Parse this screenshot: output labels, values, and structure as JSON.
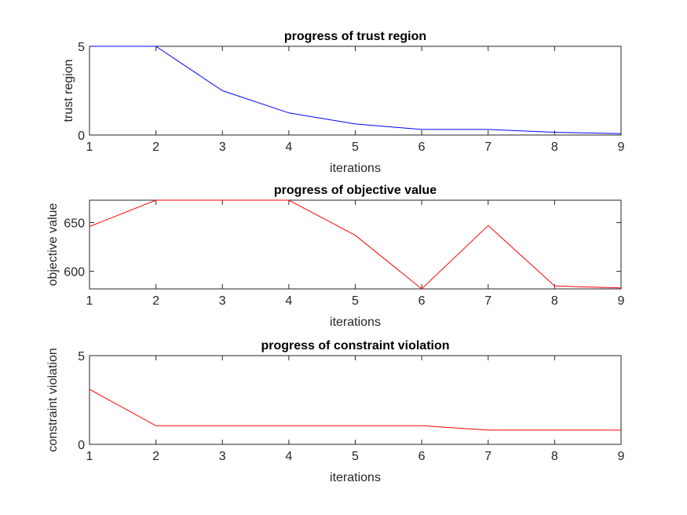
{
  "chart_data": [
    {
      "type": "line",
      "title": "progress of trust region",
      "xlabel": "iterations",
      "ylabel": "trust region",
      "xlim": [
        1,
        9
      ],
      "ylim": [
        0,
        5
      ],
      "xticks": [
        1,
        2,
        3,
        4,
        5,
        6,
        7,
        8,
        9
      ],
      "yticks": [
        0,
        5
      ],
      "color": "#0000ff",
      "x": [
        1,
        2,
        3,
        4,
        5,
        6,
        7,
        8,
        9
      ],
      "y": [
        5,
        5,
        2.5,
        1.25,
        0.625,
        0.3125,
        0.3125,
        0.156,
        0.078
      ]
    },
    {
      "type": "line",
      "title": "progress of objective value",
      "xlabel": "iterations",
      "ylabel": "objective value",
      "xlim": [
        1,
        9
      ],
      "ylim": [
        582,
        673
      ],
      "xticks": [
        1,
        2,
        3,
        4,
        5,
        6,
        7,
        8,
        9
      ],
      "yticks": [
        600,
        650
      ],
      "color": "#ff0000",
      "x": [
        1,
        2,
        3,
        4,
        5,
        6,
        7,
        8,
        9
      ],
      "y": [
        646,
        673,
        673,
        673,
        637,
        582,
        647,
        585,
        583
      ]
    },
    {
      "type": "line",
      "title": "progress of constraint violation",
      "xlabel": "iterations",
      "ylabel": "constraint violation",
      "xlim": [
        1,
        9
      ],
      "ylim": [
        0,
        5
      ],
      "xticks": [
        1,
        2,
        3,
        4,
        5,
        6,
        7,
        8,
        9
      ],
      "yticks": [
        0,
        5
      ],
      "color": "#ff0000",
      "x": [
        1,
        2,
        3,
        4,
        5,
        6,
        7,
        8,
        9
      ],
      "y": [
        3.1,
        1.05,
        1.05,
        1.05,
        1.05,
        1.05,
        0.8,
        0.8,
        0.8
      ]
    }
  ]
}
